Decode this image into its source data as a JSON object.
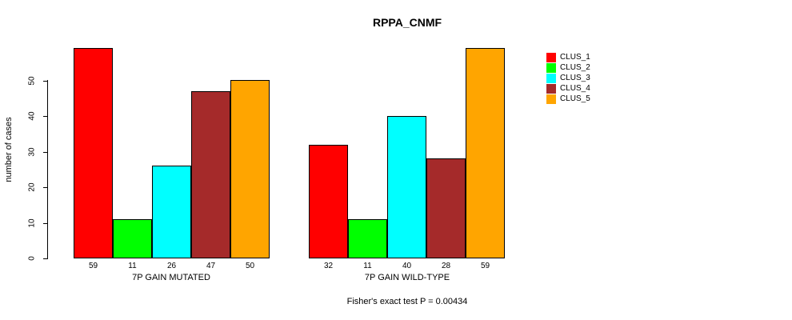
{
  "chart_data": {
    "type": "bar",
    "title": "RPPA_CNMF",
    "ylabel": "number of cases",
    "subtitle": "Fisher's exact test P = 0.00434",
    "ylim": [
      0,
      59
    ],
    "yticks": [
      0,
      10,
      20,
      30,
      40,
      50
    ],
    "grid": false,
    "legend_position": "right",
    "groups": [
      {
        "label": "7P GAIN MUTATED",
        "values": [
          59,
          11,
          26,
          47,
          50
        ]
      },
      {
        "label": "7P GAIN WILD-TYPE",
        "values": [
          32,
          11,
          40,
          28,
          59
        ]
      }
    ],
    "series": [
      {
        "name": "CLUS_1",
        "color": "#FF0000"
      },
      {
        "name": "CLUS_2",
        "color": "#00FF00"
      },
      {
        "name": "CLUS_3",
        "color": "#00FFFF"
      },
      {
        "name": "CLUS_4",
        "color": "#A52A2A"
      },
      {
        "name": "CLUS_5",
        "color": "#FFA500"
      }
    ]
  }
}
